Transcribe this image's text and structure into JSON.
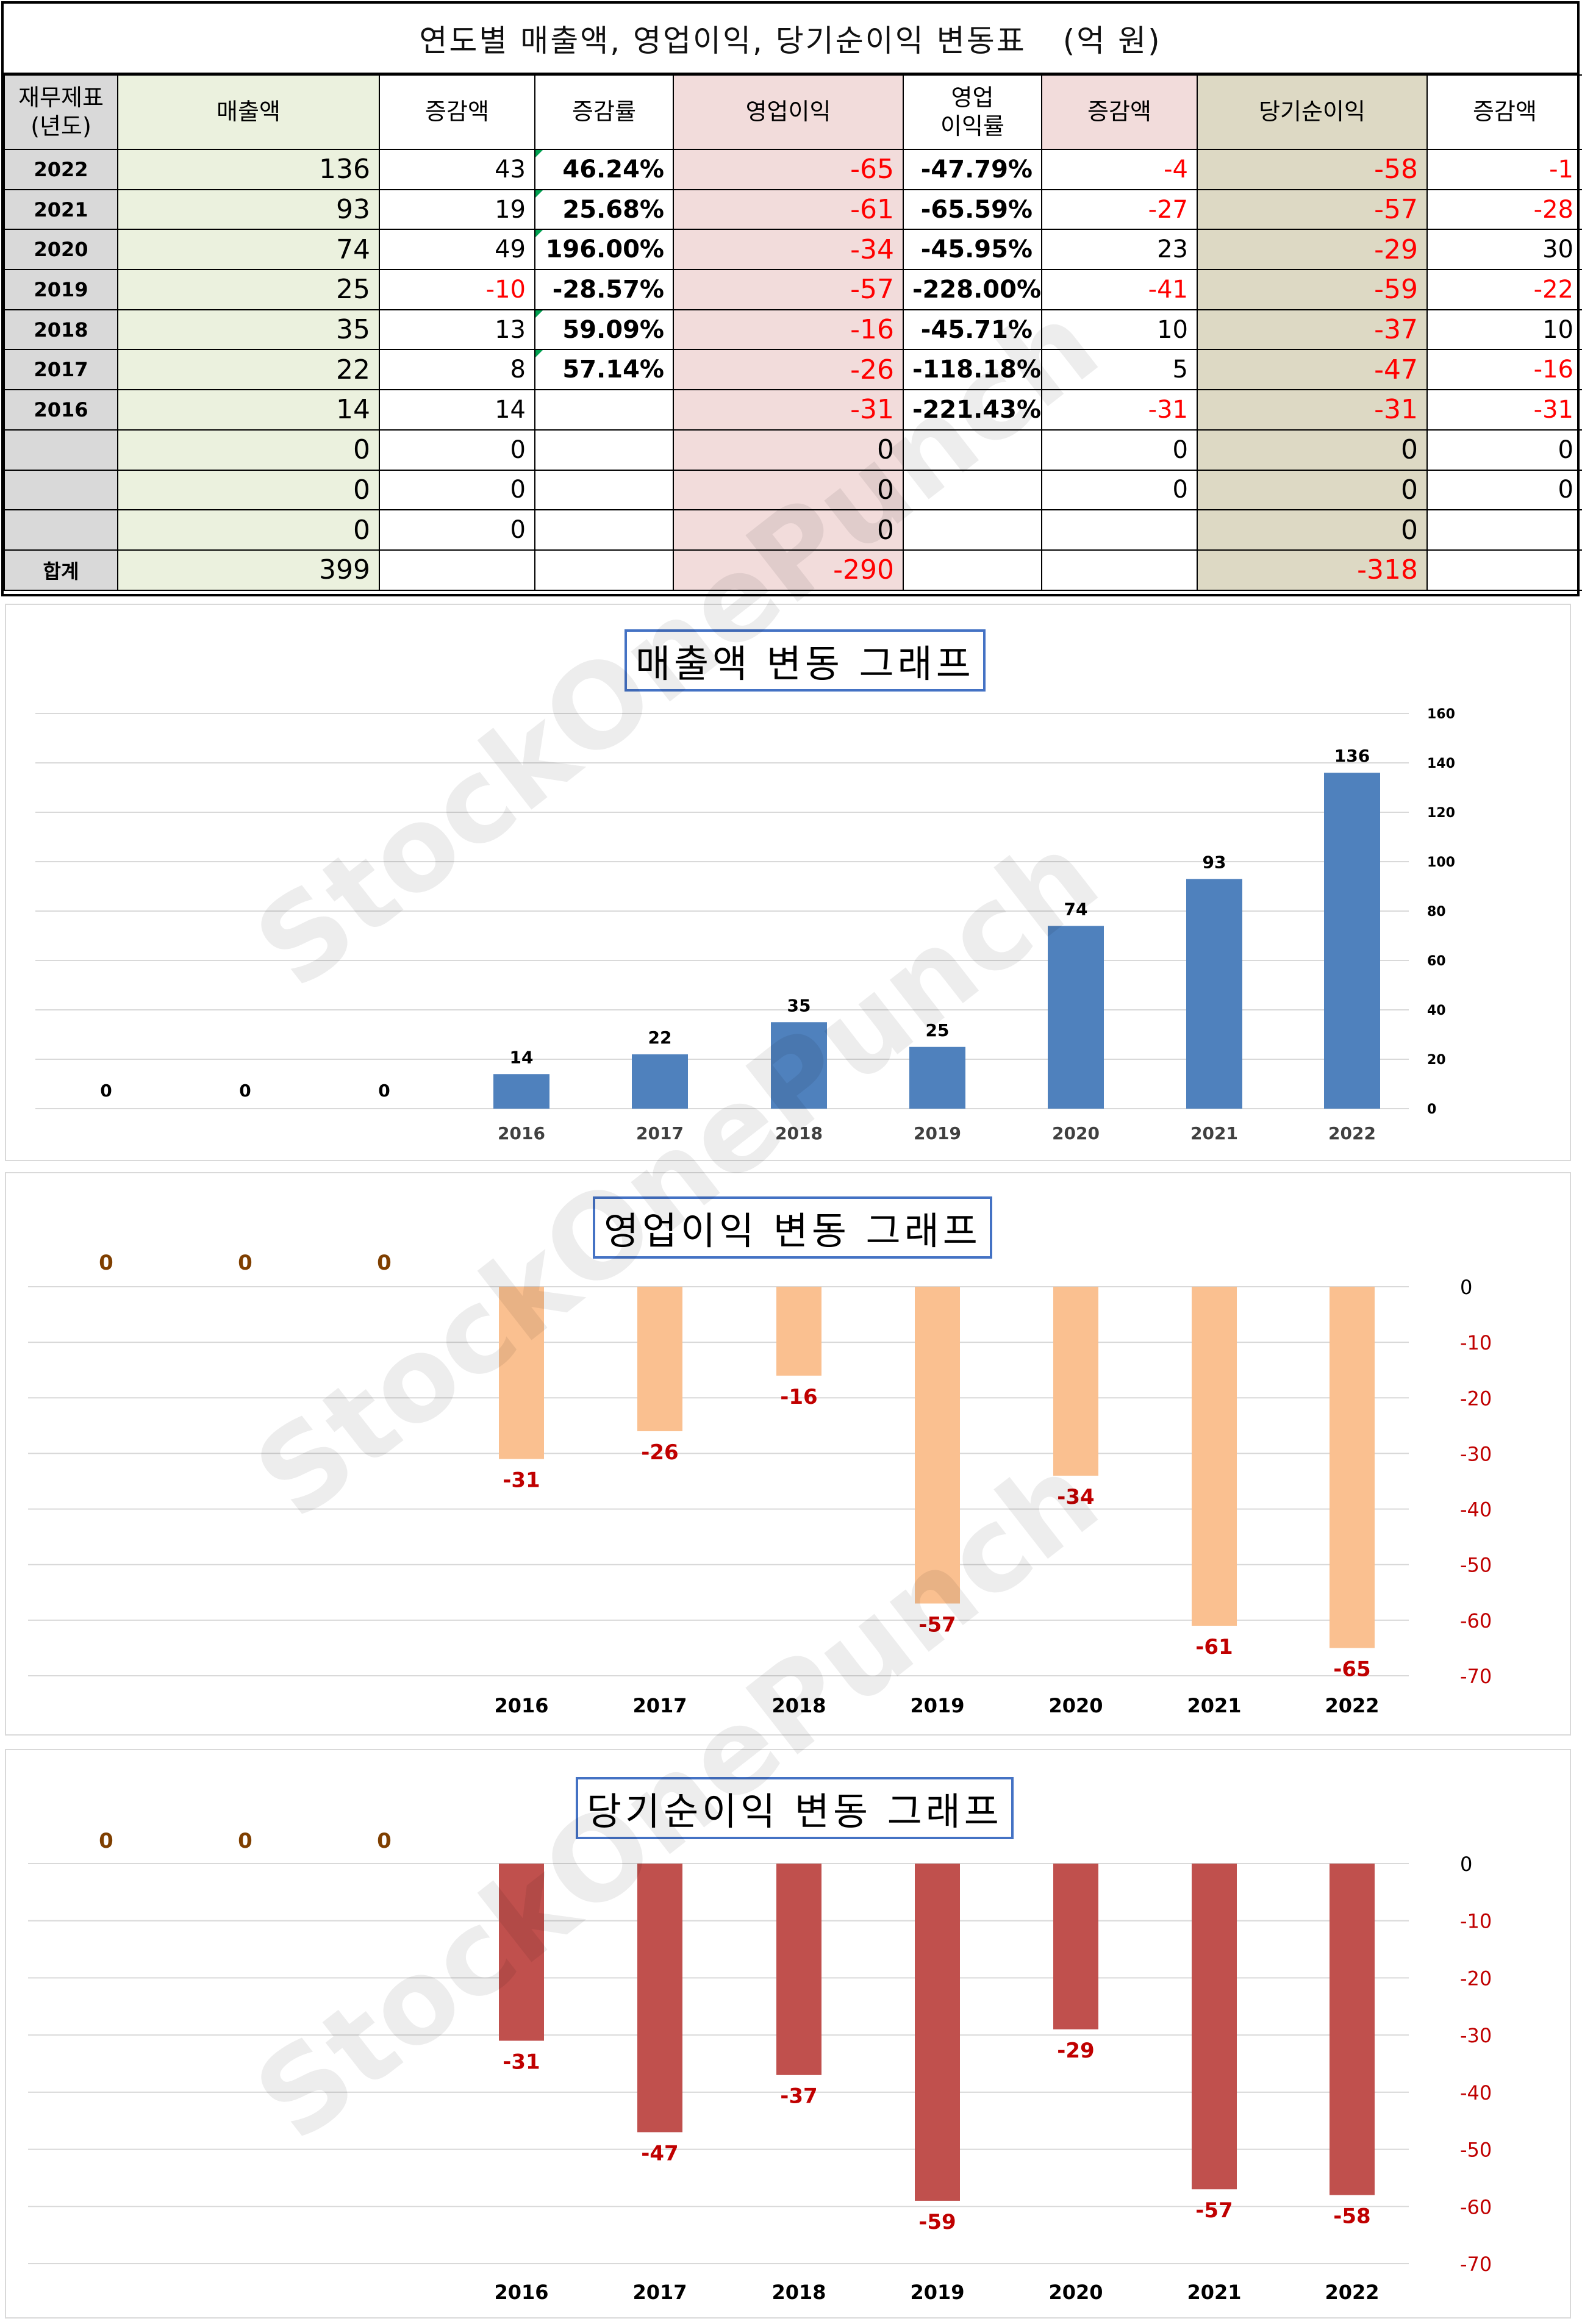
{
  "table": {
    "title": "연도별 매출액, 영업이익, 당기순이익 변동표",
    "unit": "(억 원)",
    "headers": [
      "재무제표\n(년도)",
      "매출액",
      "증감액",
      "증감률",
      "영업이익",
      "영업\n이익률",
      "증감액",
      "당기순이익",
      "증감액"
    ],
    "rows": [
      {
        "year": "2022",
        "sales": "136",
        "sales_chg": "43",
        "sales_rate": "46.24%",
        "op": "-65",
        "op_margin": "-47.79%",
        "op_chg": "-4",
        "net": "-58",
        "net_chg": "-1"
      },
      {
        "year": "2021",
        "sales": "93",
        "sales_chg": "19",
        "sales_rate": "25.68%",
        "op": "-61",
        "op_margin": "-65.59%",
        "op_chg": "-27",
        "net": "-57",
        "net_chg": "-28"
      },
      {
        "year": "2020",
        "sales": "74",
        "sales_chg": "49",
        "sales_rate": "196.00%",
        "op": "-34",
        "op_margin": "-45.95%",
        "op_chg": "23",
        "net": "-29",
        "net_chg": "30"
      },
      {
        "year": "2019",
        "sales": "25",
        "sales_chg": "-10",
        "sales_rate": "-28.57%",
        "op": "-57",
        "op_margin": "-228.00%",
        "op_chg": "-41",
        "net": "-59",
        "net_chg": "-22"
      },
      {
        "year": "2018",
        "sales": "35",
        "sales_chg": "13",
        "sales_rate": "59.09%",
        "op": "-16",
        "op_margin": "-45.71%",
        "op_chg": "10",
        "net": "-37",
        "net_chg": "10"
      },
      {
        "year": "2017",
        "sales": "22",
        "sales_chg": "8",
        "sales_rate": "57.14%",
        "op": "-26",
        "op_margin": "-118.18%",
        "op_chg": "5",
        "net": "-47",
        "net_chg": "-16"
      },
      {
        "year": "2016",
        "sales": "14",
        "sales_chg": "14",
        "sales_rate": "",
        "op": "-31",
        "op_margin": "-221.43%",
        "op_chg": "-31",
        "net": "-31",
        "net_chg": "-31"
      },
      {
        "year": "",
        "sales": "0",
        "sales_chg": "0",
        "sales_rate": "",
        "op": "0",
        "op_margin": "",
        "op_chg": "0",
        "net": "0",
        "net_chg": "0"
      },
      {
        "year": "",
        "sales": "0",
        "sales_chg": "0",
        "sales_rate": "",
        "op": "0",
        "op_margin": "",
        "op_chg": "0",
        "net": "0",
        "net_chg": "0"
      },
      {
        "year": "",
        "sales": "0",
        "sales_chg": "0",
        "sales_rate": "",
        "op": "0",
        "op_margin": "",
        "op_chg": "",
        "net": "0",
        "net_chg": ""
      }
    ],
    "total": {
      "label": "합계",
      "sales": "399",
      "op": "-290",
      "net": "-318"
    }
  },
  "watermark": "StockOnePunch",
  "colors": {
    "sales": "#4f81bd",
    "op": "#fac090",
    "net": "#c0504d",
    "neg_text": "#ff0000",
    "op_zero_label": "#7f3f00"
  },
  "chart_data": [
    {
      "type": "bar",
      "title": "매출액 변동 그래프",
      "categories": [
        "",
        "",
        "",
        "2016",
        "2017",
        "2018",
        "2019",
        "2020",
        "2021",
        "2022"
      ],
      "values": [
        0,
        0,
        0,
        14,
        22,
        35,
        25,
        74,
        93,
        136
      ],
      "ylim": [
        0,
        160
      ],
      "yticks": [
        0,
        20,
        40,
        60,
        80,
        100,
        120,
        140,
        160
      ],
      "grid": true,
      "y_axis_side": "right"
    },
    {
      "type": "bar",
      "title": "영업이익 변동 그래프",
      "categories": [
        "",
        "",
        "",
        "2016",
        "2017",
        "2018",
        "2019",
        "2020",
        "2021",
        "2022"
      ],
      "values": [
        0,
        0,
        0,
        -31,
        -26,
        -16,
        -57,
        -34,
        -61,
        -65
      ],
      "ylim": [
        -70,
        0
      ],
      "yticks": [
        0,
        -10,
        -20,
        -30,
        -40,
        -50,
        -60,
        -70
      ],
      "grid": true,
      "y_axis_side": "right"
    },
    {
      "type": "bar",
      "title": "당기순이익 변동 그래프",
      "categories": [
        "",
        "",
        "",
        "2016",
        "2017",
        "2018",
        "2019",
        "2020",
        "2021",
        "2022"
      ],
      "values": [
        0,
        0,
        0,
        -31,
        -47,
        -37,
        -59,
        -29,
        -57,
        -58
      ],
      "ylim": [
        -70,
        0
      ],
      "yticks": [
        0,
        -10,
        -20,
        -30,
        -40,
        -50,
        -60,
        -70
      ],
      "grid": true,
      "y_axis_side": "right"
    }
  ]
}
